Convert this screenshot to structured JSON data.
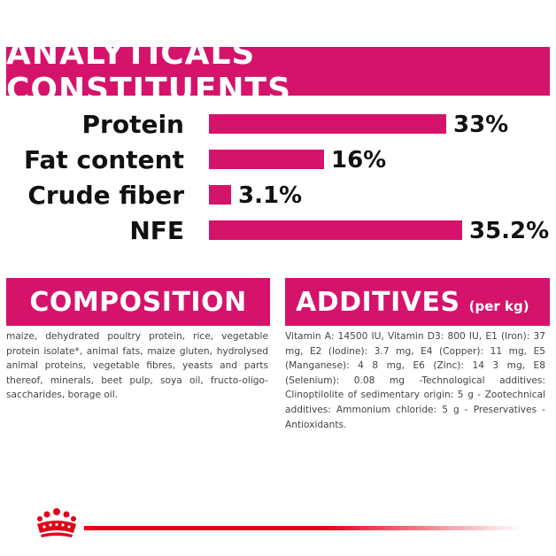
{
  "banner": {
    "title": "ANALYTICALS CONSTITUENTS"
  },
  "chart_data": {
    "type": "bar",
    "orientation": "horizontal",
    "categories": [
      "Protein",
      "Fat content",
      "Crude fiber",
      "NFE"
    ],
    "values": [
      33,
      16,
      3.1,
      35.2
    ],
    "value_labels": [
      "33%",
      "16%",
      "3.1%",
      "35.2%"
    ],
    "title": "ANALYTICALS CONSTITUENTS",
    "xlabel": "",
    "ylabel": "",
    "xlim": [
      0,
      35.2
    ],
    "grid": false,
    "color": "#d6136b"
  },
  "composition": {
    "title": "COMPOSITION",
    "text": "maize, dehydrated poultry protein, rice, vegetable protein isolate*, animal fats, maize gluten, hydrolysed animal proteins, vegetable fibres, yeasts and parts thereof, minerals, beet pulp, soya oil, fructo-oligo-saccharides, borage oil."
  },
  "additives": {
    "title": "ADDITIVES",
    "subtitle": "(per kg)",
    "text": "Vitamin A: 14500 IU, Vitamin D3: 800 IU, E1 (Iron): 37 mg, E2 (Iodine): 3.7 mg, E4 (Copper): 11 mg, E5 (Manganese): 4 8 mg, E6 (Zinc): 14 3 mg, E8 (Selenium): 0.08 mg -Technological additives: Clinoptilolite of sedimentary origin: 5 g - Zootechnical additives: Ammonium chloride: 5 g - Preservatives - Antioxidants."
  },
  "colors": {
    "accent": "#d6136b",
    "brand_red": "#e2001a"
  }
}
